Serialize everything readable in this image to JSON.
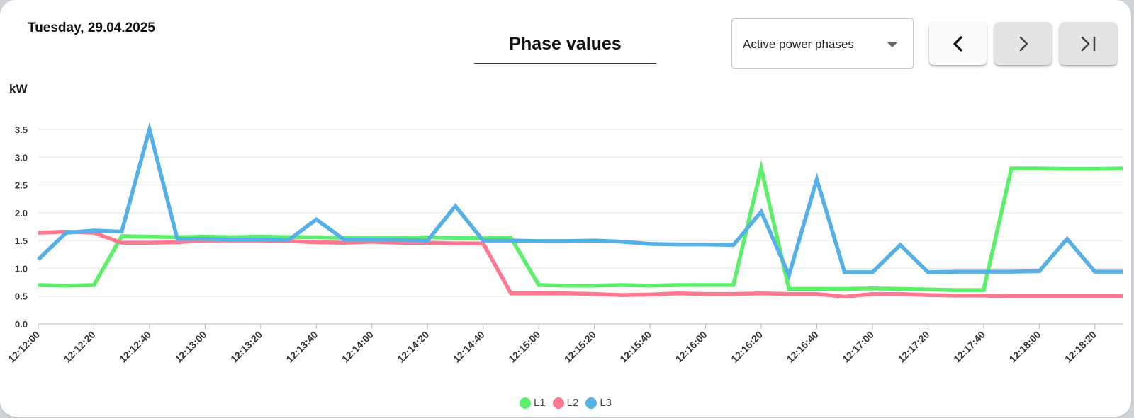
{
  "header": {
    "date": "Tuesday, 29.04.2025",
    "title": "Phase values",
    "select_value": "Active power phases"
  },
  "icons": {
    "select": "chevron-down-icon",
    "prev": "chevron-left-icon",
    "next": "chevron-right-icon",
    "last": "skip-to-end-icon"
  },
  "chart_data": {
    "type": "line",
    "ylabel": "kW",
    "ylim": [
      0,
      3.5
    ],
    "yticks": [
      "0.0",
      "0.5",
      "1.0",
      "1.5",
      "2.0",
      "2.5",
      "3.0",
      "3.5"
    ],
    "xtick_labels": [
      "12:12:00",
      "12:12:20",
      "12:12:40",
      "12:13:00",
      "12:13:20",
      "12:13:40",
      "12:14:00",
      "12:14:20",
      "12:14:40",
      "12:15:00",
      "12:15:20",
      "12:15:40",
      "12:16:00",
      "12:16:20",
      "12:16:40",
      "12:17:00",
      "12:17:20",
      "12:17:40",
      "12:18:00",
      "12:18:20"
    ],
    "x": [
      "12:12:00",
      "12:12:10",
      "12:12:20",
      "12:12:30",
      "12:12:40",
      "12:12:50",
      "12:13:00",
      "12:13:10",
      "12:13:20",
      "12:13:30",
      "12:13:40",
      "12:13:50",
      "12:14:00",
      "12:14:10",
      "12:14:20",
      "12:14:30",
      "12:14:40",
      "12:14:50",
      "12:15:00",
      "12:15:10",
      "12:15:20",
      "12:15:30",
      "12:15:40",
      "12:15:50",
      "12:16:00",
      "12:16:10",
      "12:16:20",
      "12:16:30",
      "12:16:40",
      "12:16:50",
      "12:17:00",
      "12:17:10",
      "12:17:20",
      "12:17:30",
      "12:17:40",
      "12:17:50",
      "12:18:00",
      "12:18:10",
      "12:18:20",
      "12:18:30"
    ],
    "grid": true,
    "legend_position": "bottom-center",
    "series": [
      {
        "name": "L1",
        "color": "#5cf06a",
        "values": [
          0.7,
          0.69,
          0.7,
          1.58,
          1.57,
          1.56,
          1.57,
          1.56,
          1.57,
          1.56,
          1.56,
          1.55,
          1.55,
          1.55,
          1.56,
          1.55,
          1.54,
          1.55,
          0.7,
          0.69,
          0.69,
          0.7,
          0.69,
          0.7,
          0.7,
          0.7,
          2.8,
          0.63,
          0.63,
          0.63,
          0.64,
          0.63,
          0.62,
          0.61,
          0.61,
          2.8,
          2.8,
          2.79,
          2.79,
          2.8
        ]
      },
      {
        "name": "L2",
        "color": "#ff7890",
        "values": [
          1.64,
          1.66,
          1.64,
          1.46,
          1.46,
          1.47,
          1.5,
          1.5,
          1.5,
          1.49,
          1.47,
          1.46,
          1.48,
          1.46,
          1.46,
          1.45,
          1.45,
          0.55,
          0.55,
          0.55,
          0.54,
          0.52,
          0.53,
          0.55,
          0.54,
          0.54,
          0.55,
          0.54,
          0.54,
          0.49,
          0.54,
          0.54,
          0.52,
          0.51,
          0.51,
          0.5,
          0.5,
          0.5,
          0.5,
          0.5
        ]
      },
      {
        "name": "L3",
        "color": "#55b0e8",
        "values": [
          1.16,
          1.64,
          1.68,
          1.66,
          3.5,
          1.53,
          1.53,
          1.52,
          1.52,
          1.51,
          1.88,
          1.52,
          1.52,
          1.51,
          1.5,
          2.12,
          1.5,
          1.5,
          1.49,
          1.49,
          1.5,
          1.48,
          1.44,
          1.43,
          1.43,
          1.42,
          2.02,
          0.88,
          2.6,
          0.93,
          0.93,
          1.42,
          0.93,
          0.94,
          0.94,
          0.94,
          0.95,
          1.53,
          0.94,
          0.94
        ]
      }
    ]
  }
}
